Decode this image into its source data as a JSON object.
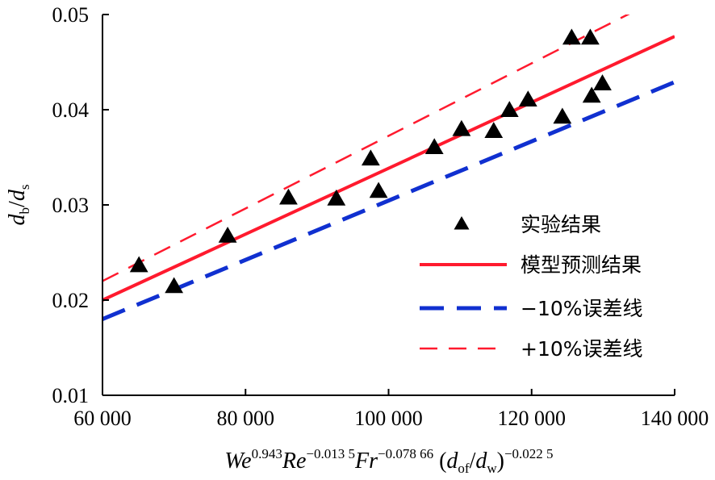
{
  "chart_data": {
    "type": "scatter",
    "xlabel": {
      "parts": [
        {
          "t": "We",
          "i": true
        },
        {
          "t": "0.943",
          "sup": true
        },
        {
          "t": "Re",
          "i": true
        },
        {
          "t": "−0.013 5",
          "sup": true
        },
        {
          "t": "Fr",
          "i": true
        },
        {
          "t": "−0.078 66",
          "sup": true
        },
        {
          "t": " (",
          "i": false
        },
        {
          "t": "d",
          "i": true
        },
        {
          "t": "of",
          "sub": true
        },
        {
          "t": "/",
          "i": false
        },
        {
          "t": "d",
          "i": true
        },
        {
          "t": "w",
          "sub": true
        },
        {
          "t": ")",
          "i": false
        },
        {
          "t": "−0.022 5",
          "sup": true
        }
      ]
    },
    "ylabel": {
      "d1": "d",
      "s1": "b",
      "slash": "/",
      "d2": "d",
      "s2": "s"
    },
    "xlim": [
      60000,
      140000
    ],
    "ylim": [
      0.01,
      0.05
    ],
    "xticks": [
      60000,
      80000,
      100000,
      120000,
      140000
    ],
    "xtick_labels": [
      "60 000",
      "80 000",
      "100 000",
      "120 000",
      "140 000"
    ],
    "yticks": [
      0.01,
      0.02,
      0.03,
      0.04,
      0.05
    ],
    "ytick_labels": [
      "0.01",
      "0.02",
      "0.03",
      "0.04",
      "0.05"
    ],
    "grid": false,
    "legend_placement": "center-right",
    "series": [
      {
        "name": "实验结果",
        "kind": "scatter",
        "marker": "triangle",
        "color": "#000000",
        "x": [
          65100,
          70000,
          77500,
          86000,
          92700,
          97500,
          98600,
          106400,
          110200,
          114700,
          116900,
          119500,
          124300,
          125600,
          128200,
          128400,
          129900
        ],
        "y": [
          0.0236,
          0.0214,
          0.0267,
          0.0307,
          0.0306,
          0.0348,
          0.0314,
          0.036,
          0.0379,
          0.0377,
          0.0399,
          0.041,
          0.0392,
          0.0475,
          0.0475,
          0.0414,
          0.0427
        ]
      },
      {
        "name": "模型预测结果",
        "kind": "line",
        "style": "solid",
        "color": "#ff1a2e",
        "x": [
          60000,
          140000
        ],
        "y": [
          0.02,
          0.0477
        ]
      },
      {
        "name": "−10%误差线",
        "kind": "line",
        "style": "long-dash",
        "color": "#1030d0",
        "x": [
          60000,
          140000
        ],
        "y": [
          0.018,
          0.0429
        ]
      },
      {
        "name": "+10%误差线",
        "kind": "line",
        "style": "dash",
        "color": "#ff1a2e",
        "x": [
          60000,
          140000
        ],
        "y": [
          0.022,
          0.0525
        ]
      }
    ]
  }
}
